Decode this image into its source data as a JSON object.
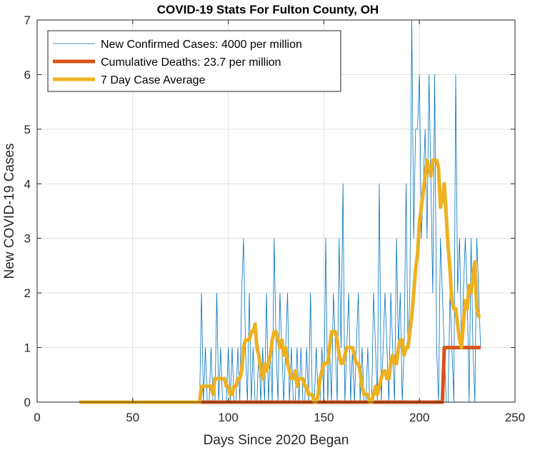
{
  "chart_data": {
    "type": "line",
    "title": "COVID-19 Stats For Fulton County, OH",
    "xlabel": "Days Since 2020 Began",
    "ylabel": "New COVID-19 Cases",
    "xlim": [
      0,
      250
    ],
    "ylim": [
      0,
      7
    ],
    "xticks": [
      0,
      50,
      100,
      150,
      200,
      250
    ],
    "yticks": [
      0,
      1,
      2,
      3,
      4,
      5,
      6,
      7
    ],
    "grid": true,
    "legend_position": "top-left",
    "series": [
      {
        "name": "New Confirmed Cases: 4000 per million",
        "color": "#0072BD",
        "line_width": 0.8,
        "x": [
          85,
          86,
          87,
          88,
          89,
          90,
          91,
          92,
          93,
          94,
          95,
          96,
          97,
          98,
          99,
          100,
          101,
          102,
          103,
          104,
          105,
          106,
          107,
          108,
          109,
          110,
          111,
          112,
          113,
          114,
          115,
          116,
          117,
          118,
          119,
          120,
          121,
          122,
          123,
          124,
          125,
          126,
          127,
          128,
          129,
          130,
          131,
          132,
          133,
          134,
          135,
          136,
          137,
          138,
          139,
          140,
          141,
          142,
          143,
          144,
          145,
          146,
          147,
          148,
          149,
          150,
          151,
          152,
          153,
          154,
          155,
          156,
          157,
          158,
          159,
          160,
          161,
          162,
          163,
          164,
          165,
          166,
          167,
          168,
          169,
          170,
          171,
          172,
          173,
          174,
          175,
          176,
          177,
          178,
          179,
          180,
          181,
          182,
          183,
          184,
          185,
          186,
          187,
          188,
          189,
          190,
          191,
          192,
          193,
          194,
          195,
          196,
          197,
          198,
          199,
          200,
          201,
          202,
          203,
          204,
          205,
          206,
          207,
          208,
          209,
          210,
          211,
          212,
          213,
          214,
          215,
          216,
          217,
          218,
          219,
          220,
          221,
          222,
          223,
          224,
          225,
          226,
          227,
          228,
          229,
          230,
          231,
          232
        ],
        "y": [
          0,
          2,
          0,
          1,
          0,
          0,
          1,
          0,
          0,
          2,
          0,
          1,
          0,
          0,
          0,
          1,
          0,
          1,
          0,
          0,
          1,
          0,
          2,
          3,
          1,
          0,
          2,
          0,
          1,
          0,
          0,
          1,
          0,
          1,
          0,
          2,
          0,
          1,
          0,
          3,
          1,
          0,
          2,
          1,
          0,
          1,
          2,
          0,
          1,
          0,
          0,
          1,
          0,
          1,
          0,
          0,
          1,
          0,
          2,
          0,
          0,
          1,
          0,
          0,
          1,
          0,
          3,
          0,
          1,
          0,
          2,
          1,
          0,
          3,
          1,
          4,
          0,
          1,
          2,
          0,
          1,
          0,
          1,
          2,
          0,
          1,
          0,
          0,
          1,
          0,
          0,
          2,
          1,
          0,
          4,
          0,
          1,
          2,
          1,
          0,
          2,
          1,
          0,
          3,
          1,
          2,
          0,
          1,
          4,
          1,
          2,
          7,
          3,
          5,
          5,
          6,
          3,
          4,
          5,
          3,
          6,
          4,
          2,
          6,
          1,
          0,
          3,
          2,
          1,
          0,
          0,
          2,
          1,
          0,
          6,
          2,
          3,
          1,
          2,
          3,
          2,
          0,
          3,
          1,
          0,
          3,
          2,
          1
        ],
        "y_note": ""
      },
      {
        "name": "Cumulative Deaths: 23.7 per million",
        "color": "#D95319",
        "line_width": 5,
        "x": [
          22,
          212,
          213,
          232
        ],
        "y": [
          0,
          0,
          1,
          1
        ]
      },
      {
        "name": "7 Day Case Average",
        "color": "#EDB120",
        "line_width": 5,
        "x": [
          22,
          85,
          86,
          87,
          88,
          89,
          90,
          91,
          92,
          93,
          94,
          95,
          96,
          97,
          98,
          99,
          100,
          101,
          102,
          103,
          104,
          105,
          106,
          107,
          108,
          109,
          110,
          111,
          112,
          113,
          114,
          115,
          116,
          117,
          118,
          119,
          120,
          121,
          122,
          123,
          124,
          125,
          126,
          127,
          128,
          129,
          130,
          131,
          132,
          133,
          134,
          135,
          136,
          137,
          138,
          139,
          140,
          141,
          142,
          143,
          144,
          145,
          146,
          147,
          148,
          149,
          150,
          151,
          152,
          153,
          154,
          155,
          156,
          157,
          158,
          159,
          160,
          161,
          162,
          163,
          164,
          165,
          166,
          167,
          168,
          169,
          170,
          171,
          172,
          173,
          174,
          175,
          176,
          177,
          178,
          179,
          180,
          181,
          182,
          183,
          184,
          185,
          186,
          187,
          188,
          189,
          190,
          191,
          192,
          193,
          194,
          195,
          196,
          197,
          198,
          199,
          200,
          201,
          202,
          203,
          204,
          205,
          206,
          207,
          208,
          209,
          210,
          211,
          212,
          213,
          214,
          215,
          216,
          217,
          218,
          219,
          220,
          221,
          222,
          223,
          224,
          225,
          226,
          227,
          228,
          229,
          230,
          231,
          232
        ],
        "y": [
          0,
          0,
          0.29,
          0.29,
          0.29,
          0.29,
          0.29,
          0.29,
          0.14,
          0.43,
          0.43,
          0.43,
          0.43,
          0.43,
          0.43,
          0.29,
          0.29,
          0.14,
          0.14,
          0.29,
          0.29,
          0.43,
          0.43,
          0.57,
          1.0,
          1.14,
          1.14,
          1.14,
          1.29,
          1.29,
          1.43,
          1.0,
          0.86,
          0.57,
          0.43,
          0.71,
          0.57,
          0.71,
          0.86,
          1.14,
          1.29,
          1.29,
          1.14,
          1.0,
          1.14,
          0.86,
          1.0,
          0.71,
          0.57,
          0.43,
          0.43,
          0.57,
          0.29,
          0.43,
          0.43,
          0.43,
          0.29,
          0.29,
          0.14,
          0.14,
          0.14,
          0.0,
          0.0,
          0.14,
          0.43,
          0.57,
          0.71,
          0.71,
          0.71,
          1.0,
          1.29,
          1.29,
          1.29,
          1.14,
          0.86,
          0.71,
          0.71,
          0.86,
          1.0,
          1.0,
          1.0,
          1.0,
          0.86,
          0.71,
          0.71,
          0.57,
          0.29,
          0.14,
          0.14,
          0.14,
          0.0,
          0.0,
          0.14,
          0.29,
          0.14,
          0.29,
          0.43,
          0.57,
          0.57,
          0.43,
          0.43,
          0.71,
          0.86,
          0.71,
          0.71,
          1.0,
          1.14,
          1.14,
          0.86,
          1.0,
          1.0,
          1.29,
          1.57,
          2.0,
          2.43,
          2.71,
          3.29,
          3.57,
          3.86,
          4.14,
          4.43,
          4.29,
          4.14,
          4.43,
          4.43,
          4.43,
          4.29,
          3.57,
          3.71,
          4.0,
          3.43,
          2.86,
          2.43,
          1.86,
          1.71,
          1.71,
          1.43,
          1.14,
          1.0,
          1.43,
          1.86,
          1.71,
          2.14,
          2.0,
          2.29,
          2.57,
          1.71,
          1.57,
          1.57
        ]
      }
    ]
  }
}
